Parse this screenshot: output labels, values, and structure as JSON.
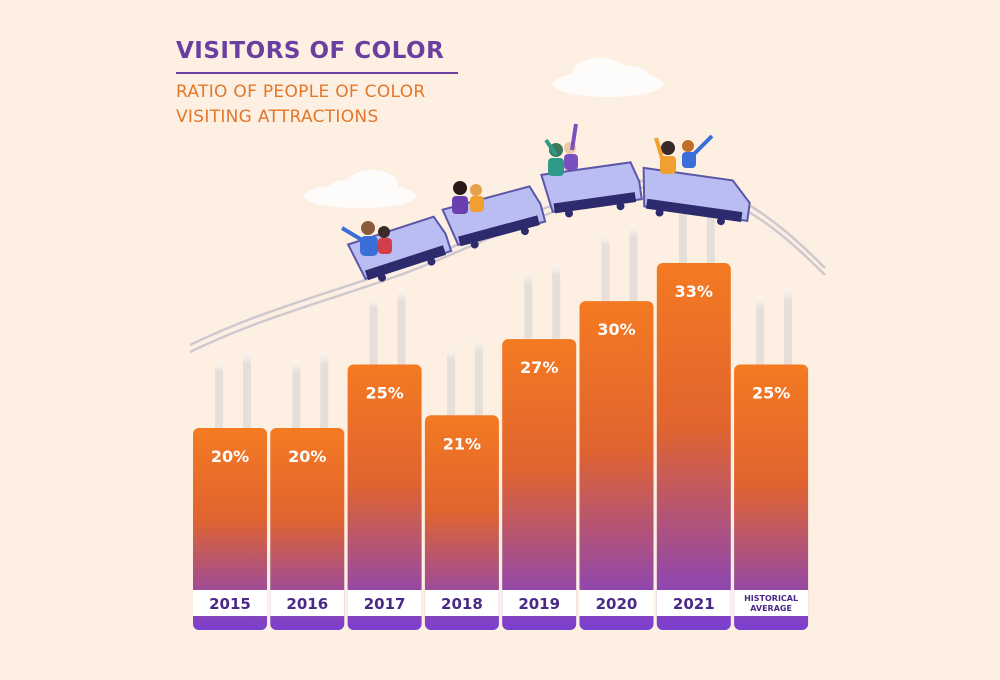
{
  "chart_data": {
    "type": "bar",
    "title": "VISITORS OF COLOR",
    "subtitle_lines": [
      "RATIO OF PEOPLE OF COLOR",
      "VISITING ATTRACTIONS"
    ],
    "categories": [
      "2015",
      "2016",
      "2017",
      "2018",
      "2019",
      "2020",
      "2021",
      "HISTORICAL AVERAGE"
    ],
    "category_label_lines": [
      [
        "2015"
      ],
      [
        "2016"
      ],
      [
        "2017"
      ],
      [
        "2018"
      ],
      [
        "2019"
      ],
      [
        "2020"
      ],
      [
        "2021"
      ],
      [
        "HISTORICAL",
        "AVERAGE"
      ]
    ],
    "values": [
      20,
      20,
      25,
      21,
      27,
      30,
      33,
      25
    ],
    "data_labels": [
      "20%",
      "20%",
      "25%",
      "21%",
      "27%",
      "30%",
      "33%",
      "25%"
    ],
    "unit": "%",
    "xlabel": "",
    "ylabel": "",
    "ylim": [
      0,
      40
    ],
    "grid": false,
    "legend": "none",
    "colors": {
      "bar_top": "#f47a22",
      "bar_mid": "#e0642f",
      "bar_bottom": "#7a3fd0",
      "label_text": "#4a2a86",
      "background": "#fdf0e3",
      "title": "#6b3fa0",
      "subtitle": "#e2772b",
      "track": "#c9c4cc",
      "cart": "#b9bdf2"
    }
  },
  "decorations": {
    "icons": [
      "roller-coaster-track-icon",
      "roller-coaster-cart-icon",
      "rider-icon",
      "cloud-icon"
    ]
  }
}
